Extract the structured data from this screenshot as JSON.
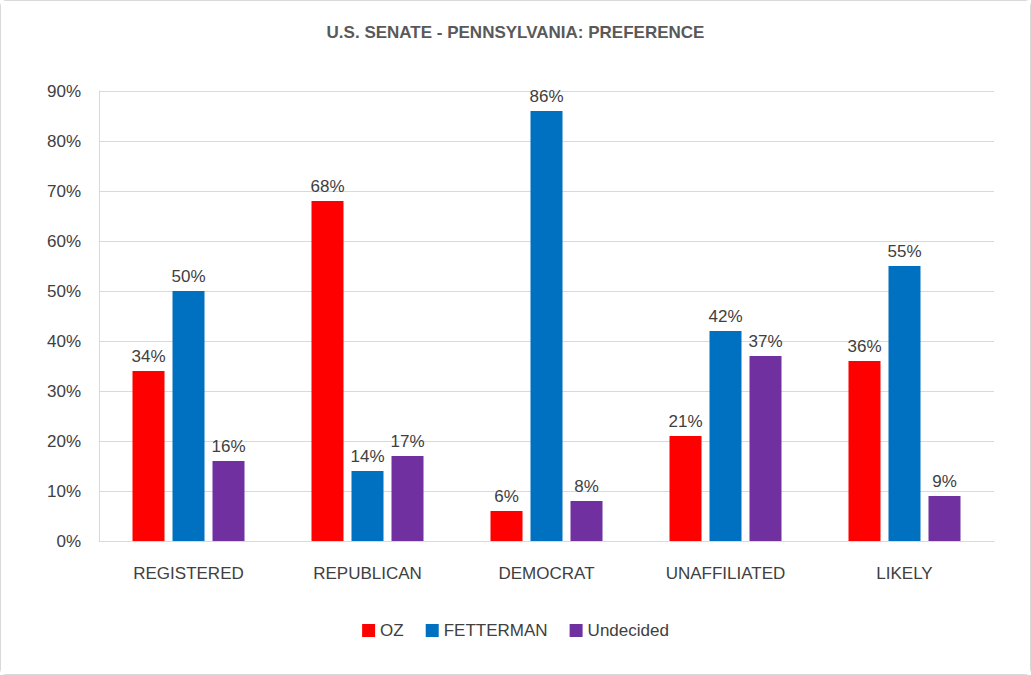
{
  "chart_data": {
    "type": "bar",
    "title": "U.S. SENATE - PENNSYLVANIA: PREFERENCE",
    "categories": [
      "REGISTERED",
      "REPUBLICAN",
      "DEMOCRAT",
      "UNAFFILIATED",
      "LIKELY"
    ],
    "series": [
      {
        "name": "OZ",
        "color": "#ff0000",
        "values": [
          34,
          68,
          6,
          21,
          36
        ],
        "value_labels": [
          "34%",
          "68%",
          "6%",
          "21%",
          "36%"
        ]
      },
      {
        "name": "FETTERMAN",
        "color": "#0070c0",
        "values": [
          50,
          14,
          86,
          42,
          55
        ],
        "value_labels": [
          "50%",
          "14%",
          "86%",
          "42%",
          "55%"
        ]
      },
      {
        "name": "Undecided",
        "color": "#7030a0",
        "values": [
          16,
          17,
          8,
          37,
          9
        ],
        "value_labels": [
          "16%",
          "17%",
          "8%",
          "37%",
          "9%"
        ]
      }
    ],
    "ylim": [
      0,
      90
    ],
    "yticks": [
      {
        "value": 0,
        "label": "0%"
      },
      {
        "value": 10,
        "label": "10%"
      },
      {
        "value": 20,
        "label": "20%"
      },
      {
        "value": 30,
        "label": "30%"
      },
      {
        "value": 40,
        "label": "40%"
      },
      {
        "value": 50,
        "label": "50%"
      },
      {
        "value": 60,
        "label": "60%"
      },
      {
        "value": 70,
        "label": "70%"
      },
      {
        "value": 80,
        "label": "80%"
      },
      {
        "value": 90,
        "label": "90%"
      }
    ],
    "grid": true,
    "legend": "bottom",
    "data_labels": true
  }
}
